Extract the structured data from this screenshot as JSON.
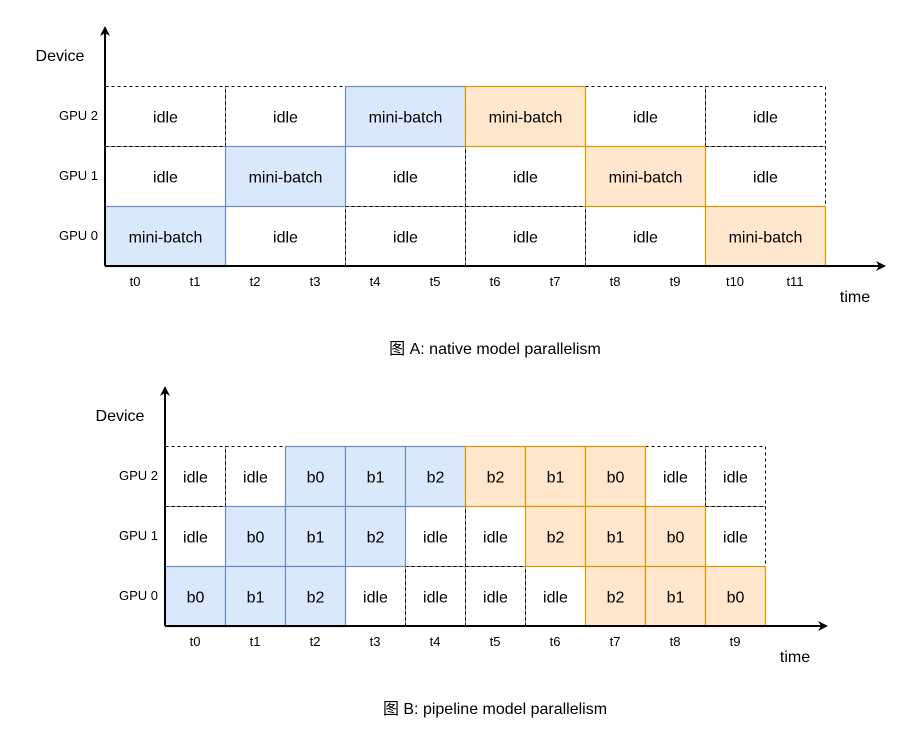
{
  "colors": {
    "blue_fill": "#dae8fc",
    "blue_stroke": "#6c8ebf",
    "orange_fill": "#ffe6cc",
    "orange_stroke": "#d79b00",
    "idle_stroke": "#000000"
  },
  "diagrams": [
    {
      "id": "A",
      "y_axis_title": "Device",
      "x_axis_title": "time",
      "caption": "图 A: native model parallelism",
      "gpus": [
        "GPU 2",
        "GPU 1",
        "GPU 0"
      ],
      "ticks": [
        "t0",
        "t1",
        "t2",
        "t3",
        "t4",
        "t5",
        "t6",
        "t7",
        "t8",
        "t9",
        "t10",
        "t11"
      ],
      "rows": [
        [
          {
            "text": "idle",
            "style": "idle"
          },
          {
            "text": "idle",
            "style": "idle"
          },
          {
            "text": "mini-batch",
            "style": "blue"
          },
          {
            "text": "mini-batch",
            "style": "orange"
          },
          {
            "text": "idle",
            "style": "idle"
          },
          {
            "text": "idle",
            "style": "idle"
          }
        ],
        [
          {
            "text": "idle",
            "style": "idle"
          },
          {
            "text": "mini-batch",
            "style": "blue"
          },
          {
            "text": "idle",
            "style": "idle"
          },
          {
            "text": "idle",
            "style": "idle"
          },
          {
            "text": "mini-batch",
            "style": "orange"
          },
          {
            "text": "idle",
            "style": "idle"
          }
        ],
        [
          {
            "text": "mini-batch",
            "style": "blue"
          },
          {
            "text": "idle",
            "style": "idle"
          },
          {
            "text": "idle",
            "style": "idle"
          },
          {
            "text": "idle",
            "style": "idle"
          },
          {
            "text": "idle",
            "style": "idle"
          },
          {
            "text": "mini-batch",
            "style": "orange"
          }
        ]
      ]
    },
    {
      "id": "B",
      "y_axis_title": "Device",
      "x_axis_title": "time",
      "caption": "图 B: pipeline model parallelism",
      "gpus": [
        "GPU 2",
        "GPU 1",
        "GPU 0"
      ],
      "ticks": [
        "t0",
        "t1",
        "t2",
        "t3",
        "t4",
        "t5",
        "t6",
        "t7",
        "t8",
        "t9"
      ],
      "rows": [
        [
          {
            "text": "idle",
            "style": "idle"
          },
          {
            "text": "idle",
            "style": "idle"
          },
          {
            "text": "b0",
            "style": "blue"
          },
          {
            "text": "b1",
            "style": "blue"
          },
          {
            "text": "b2",
            "style": "blue"
          },
          {
            "text": "b2",
            "style": "orange"
          },
          {
            "text": "b1",
            "style": "orange"
          },
          {
            "text": "b0",
            "style": "orange"
          },
          {
            "text": "idle",
            "style": "idle"
          },
          {
            "text": "idle",
            "style": "idle"
          }
        ],
        [
          {
            "text": "idle",
            "style": "idle"
          },
          {
            "text": "b0",
            "style": "blue"
          },
          {
            "text": "b1",
            "style": "blue"
          },
          {
            "text": "b2",
            "style": "blue"
          },
          {
            "text": "idle",
            "style": "idle"
          },
          {
            "text": "idle",
            "style": "idle"
          },
          {
            "text": "b2",
            "style": "orange"
          },
          {
            "text": "b1",
            "style": "orange"
          },
          {
            "text": "b0",
            "style": "orange"
          },
          {
            "text": "idle",
            "style": "idle"
          }
        ],
        [
          {
            "text": "b0",
            "style": "blue"
          },
          {
            "text": "b1",
            "style": "blue"
          },
          {
            "text": "b2",
            "style": "blue"
          },
          {
            "text": "idle",
            "style": "idle"
          },
          {
            "text": "idle",
            "style": "idle"
          },
          {
            "text": "idle",
            "style": "idle"
          },
          {
            "text": "idle",
            "style": "idle"
          },
          {
            "text": "b2",
            "style": "orange"
          },
          {
            "text": "b1",
            "style": "orange"
          },
          {
            "text": "b0",
            "style": "orange"
          }
        ]
      ]
    }
  ]
}
